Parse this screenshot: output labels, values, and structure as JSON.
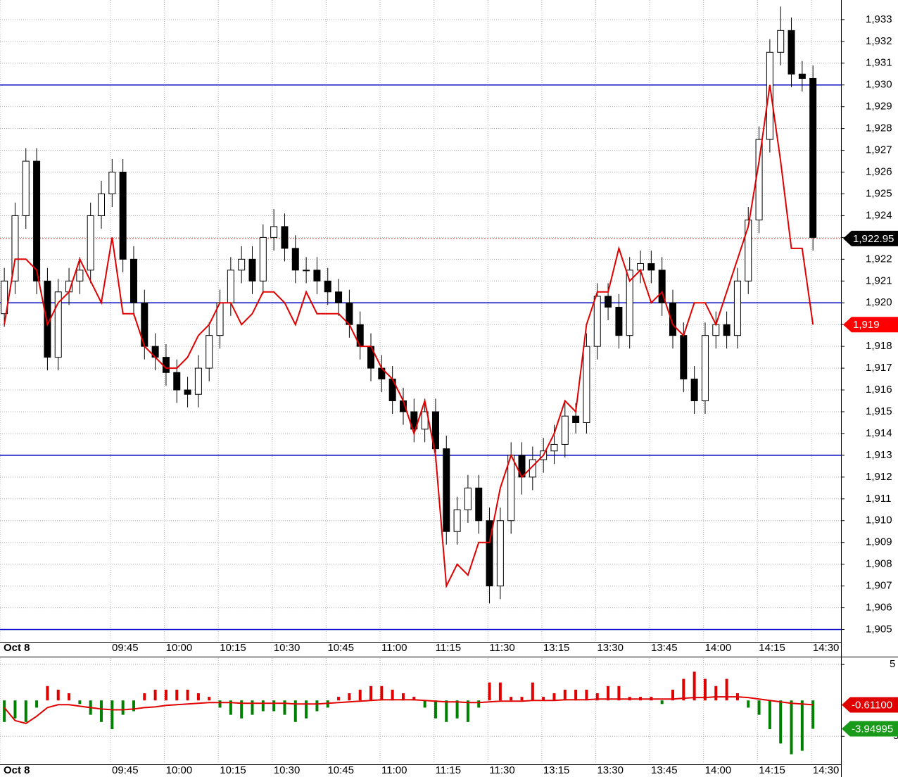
{
  "chart_data": [
    {
      "type": "candlestick",
      "xlim": [
        0,
        78
      ],
      "xticks": [
        {
          "value": 0,
          "label": "Oct 8"
        },
        {
          "value": 10.25,
          "label": "09:45"
        },
        {
          "value": 15.25,
          "label": "10:00"
        },
        {
          "value": 20.25,
          "label": "10:15"
        },
        {
          "value": 25.25,
          "label": "10:30"
        },
        {
          "value": 30.25,
          "label": "10:45"
        },
        {
          "value": 35.25,
          "label": "11:00"
        },
        {
          "value": 40.25,
          "label": "11:15"
        },
        {
          "value": 45.25,
          "label": "11:30"
        },
        {
          "value": 50.25,
          "label": "13:15"
        },
        {
          "value": 55.25,
          "label": "13:30"
        },
        {
          "value": 60.25,
          "label": "13:45"
        },
        {
          "value": 65.25,
          "label": "14:00"
        },
        {
          "value": 70.25,
          "label": "14:15"
        },
        {
          "value": 75.25,
          "label": "14:30"
        }
      ],
      "ylim": [
        1904.5,
        1933.9
      ],
      "yticks": [
        {
          "value": 1905,
          "label": "1,905"
        },
        {
          "value": 1906,
          "label": "1,906"
        },
        {
          "value": 1907,
          "label": "1,907"
        },
        {
          "value": 1908,
          "label": "1,908"
        },
        {
          "value": 1909,
          "label": "1,909"
        },
        {
          "value": 1910,
          "label": "1,910"
        },
        {
          "value": 1911,
          "label": "1,911"
        },
        {
          "value": 1912,
          "label": "1,912"
        },
        {
          "value": 1913,
          "label": "1,913"
        },
        {
          "value": 1914,
          "label": "1,914"
        },
        {
          "value": 1915,
          "label": "1,915"
        },
        {
          "value": 1916,
          "label": "1,916"
        },
        {
          "value": 1917,
          "label": "1,917"
        },
        {
          "value": 1918,
          "label": "1,918"
        },
        {
          "value": 1919,
          "label": "1,919"
        },
        {
          "value": 1920,
          "label": "1,920"
        },
        {
          "value": 1921,
          "label": "1,921"
        },
        {
          "value": 1922,
          "label": "1,922"
        },
        {
          "value": 1923,
          "label": "1,923"
        },
        {
          "value": 1924,
          "label": "1,924"
        },
        {
          "value": 1925,
          "label": "1,925"
        },
        {
          "value": 1926,
          "label": "1,926"
        },
        {
          "value": 1927,
          "label": "1,927"
        },
        {
          "value": 1928,
          "label": "1,928"
        },
        {
          "value": 1929,
          "label": "1,929"
        },
        {
          "value": 1930,
          "label": "1,930"
        },
        {
          "value": 1931,
          "label": "1,931"
        },
        {
          "value": 1932,
          "label": "1,932"
        },
        {
          "value": 1933,
          "label": "1,933"
        }
      ],
      "grid": true,
      "open": [
        1919.5,
        1921,
        1924,
        1926.5,
        1921,
        1917.5,
        1920.5,
        1921,
        1921.5,
        1924,
        1925,
        1926,
        1922,
        1920,
        1918,
        1917.5,
        1916.8,
        1916,
        1915.8,
        1917,
        1918.5,
        1920,
        1921.5,
        1922,
        1921,
        1923,
        1923.5,
        1922.5,
        1921.5,
        1921.5,
        1921,
        1920.5,
        1920,
        1919,
        1918,
        1917,
        1916.5,
        1915.5,
        1915,
        1914.2,
        1915,
        1913.3,
        1909.5,
        1910.5,
        1911.5,
        1910,
        1907,
        1910,
        1913,
        1912,
        1912.8,
        1913.2,
        1913.5,
        1914.8,
        1914.5,
        1918,
        1920.3,
        1919.8,
        1918.5,
        1921.5,
        1921.8,
        1921.5,
        1920,
        1918.5,
        1916.5,
        1915.5,
        1918.5,
        1919,
        1918.5,
        1921,
        1923.8,
        1927.5,
        1931.5,
        1932.5,
        1930.5,
        1930.3
      ],
      "high": [
        1921.6,
        1924.6,
        1927.1,
        1927.1,
        1921.6,
        1921.1,
        1921.6,
        1922.1,
        1924.6,
        1925.6,
        1926.6,
        1926.6,
        1922.6,
        1920.6,
        1918.6,
        1918.1,
        1917.4,
        1916.6,
        1917.6,
        1919.1,
        1920.6,
        1922.1,
        1922.6,
        1922.6,
        1923.6,
        1924.3,
        1924.1,
        1923.1,
        1922.1,
        1922.1,
        1921.6,
        1921.1,
        1920.6,
        1919.6,
        1918.6,
        1917.6,
        1917.1,
        1916.1,
        1915.6,
        1915.6,
        1915.6,
        1913.9,
        1911.1,
        1912.1,
        1912.1,
        1910.6,
        1910.6,
        1913.6,
        1913.6,
        1913.4,
        1913.8,
        1914.4,
        1915.4,
        1915.4,
        1918.6,
        1920.9,
        1920.9,
        1920.4,
        1922.1,
        1922.4,
        1922.4,
        1922.1,
        1920.6,
        1919.1,
        1917.1,
        1919.1,
        1919.6,
        1919.6,
        1921.6,
        1924.4,
        1928.1,
        1932.1,
        1933.6,
        1933.1,
        1931.1,
        1930.9
      ],
      "low": [
        1918.9,
        1920.4,
        1923.4,
        1920.4,
        1916.9,
        1916.9,
        1919.9,
        1920.4,
        1920.9,
        1923.4,
        1924.4,
        1921.4,
        1919.4,
        1917.4,
        1916.9,
        1916.2,
        1915.4,
        1915.2,
        1915.2,
        1916.4,
        1917.9,
        1919.4,
        1920.9,
        1920.4,
        1920.4,
        1922.4,
        1921.9,
        1920.9,
        1920.9,
        1920.4,
        1919.9,
        1919.4,
        1918.4,
        1917.4,
        1916.4,
        1915.9,
        1914.9,
        1914.4,
        1913.6,
        1913.6,
        1912.7,
        1908.9,
        1908.9,
        1909.9,
        1909.4,
        1906.2,
        1906.4,
        1909.4,
        1911.2,
        1911.4,
        1912.2,
        1912.6,
        1912.9,
        1914.0,
        1914.0,
        1917.4,
        1919.2,
        1917.9,
        1917.9,
        1920.9,
        1920.9,
        1919.4,
        1917.9,
        1915.9,
        1914.9,
        1914.9,
        1917.9,
        1917.9,
        1917.9,
        1920.4,
        1923.2,
        1926.9,
        1930.9,
        1929.9,
        1929.7,
        1922.4
      ],
      "close": [
        1921,
        1924,
        1926.5,
        1921,
        1917.5,
        1920.5,
        1921,
        1921.5,
        1924,
        1925,
        1926,
        1922,
        1920,
        1918,
        1917.5,
        1916.8,
        1916,
        1915.8,
        1917,
        1918.5,
        1920,
        1921.5,
        1922,
        1921,
        1923,
        1923.5,
        1922.5,
        1921.5,
        1921.5,
        1921,
        1920.5,
        1920,
        1919,
        1918,
        1917,
        1916.5,
        1915.5,
        1915,
        1914.2,
        1915,
        1913.3,
        1909.5,
        1910.5,
        1911.5,
        1910,
        1907,
        1910,
        1913,
        1912,
        1912.8,
        1913.2,
        1913.5,
        1914.8,
        1914.5,
        1918,
        1920.3,
        1919.8,
        1918.5,
        1921.5,
        1921.8,
        1921.5,
        1920,
        1918.5,
        1916.5,
        1915.5,
        1918.5,
        1919,
        1918.5,
        1921,
        1923.8,
        1927.5,
        1931.5,
        1932.5,
        1930.5,
        1930.3,
        1923
      ],
      "overlay": {
        "color": "#e00000",
        "values": [
          1919,
          1922,
          1922,
          1921.5,
          1919,
          1920,
          1920.5,
          1922,
          1921,
          1920,
          1923,
          1919.5,
          1919.5,
          1918,
          1917.5,
          1917,
          1917,
          1917.5,
          1918.5,
          1919,
          1920,
          1920,
          1919,
          1919.5,
          1920.5,
          1920.5,
          1920,
          1919,
          1920.5,
          1919.5,
          1919.5,
          1919.5,
          1919,
          1918,
          1918,
          1917,
          1916.5,
          1915.5,
          1914,
          1915.5,
          1913,
          1907,
          1908,
          1907.5,
          1909,
          1909,
          1911.5,
          1913,
          1912,
          1912.5,
          1913,
          1914,
          1915.5,
          1915,
          1919,
          1920.5,
          1920.5,
          1922.5,
          1921,
          1921.5,
          1920,
          1920.5,
          1919,
          1918.5,
          1920,
          1920,
          1919,
          1920.5,
          1922,
          1923.5,
          1926.5,
          1930,
          1926.5,
          1922.5,
          1922.5,
          1919
        ]
      },
      "reference_lines": {
        "color": "#0000c0",
        "values": [
          1930,
          1920,
          1913,
          1905
        ]
      },
      "price_tags": [
        {
          "value": 1922.95,
          "label": "1,922.95",
          "color": "#000000"
        },
        {
          "value": 1919,
          "label": "1,919",
          "color": "#ff0000"
        }
      ]
    },
    {
      "type": "histogram",
      "xlim": [
        0,
        78
      ],
      "xticks": [
        {
          "value": 0,
          "label": "Oct 8"
        },
        {
          "value": 10.25,
          "label": "09:45"
        },
        {
          "value": 15.25,
          "label": "10:00"
        },
        {
          "value": 20.25,
          "label": "10:15"
        },
        {
          "value": 25.25,
          "label": "10:30"
        },
        {
          "value": 30.25,
          "label": "10:45"
        },
        {
          "value": 35.25,
          "label": "11:00"
        },
        {
          "value": 40.25,
          "label": "11:15"
        },
        {
          "value": 45.25,
          "label": "11:30"
        },
        {
          "value": 50.25,
          "label": "13:15"
        },
        {
          "value": 55.25,
          "label": "13:30"
        },
        {
          "value": 60.25,
          "label": "13:45"
        },
        {
          "value": 65.25,
          "label": "14:00"
        },
        {
          "value": 70.25,
          "label": "14:15"
        },
        {
          "value": 75.25,
          "label": "14:30"
        }
      ],
      "ylim": [
        -8.8,
        5.9
      ],
      "yticks": [
        5,
        -5
      ],
      "grid": true,
      "color_up": "#e00000",
      "color_down": "#008000",
      "values": [
        -3,
        -2.5,
        -3,
        -1,
        2,
        1.5,
        1,
        -0.5,
        -2,
        -3,
        -4,
        -2,
        -1.5,
        1,
        1.5,
        1.5,
        1.5,
        1.5,
        1,
        0.5,
        -1,
        -2,
        -2.5,
        -2,
        -1.5,
        -1.5,
        -2,
        -3,
        -2.5,
        -1.5,
        -1,
        0.5,
        1,
        1.5,
        2,
        2,
        1.5,
        1,
        0.5,
        -1,
        -2.5,
        -3,
        -2.5,
        -3,
        -1,
        2.5,
        2.5,
        0.5,
        0.5,
        2.5,
        0.5,
        1,
        1.5,
        1.5,
        1.5,
        1,
        2,
        2,
        0.5,
        0.5,
        0.5,
        -0.5,
        1.5,
        3,
        4,
        3,
        2,
        3,
        1,
        -1,
        -2,
        -4,
        -6,
        -7.5,
        -7,
        -3.94995
      ],
      "signal": {
        "color": "#e00000",
        "values": [
          -1,
          -2.8,
          -3.2,
          -2.2,
          -1,
          -0.6,
          -0.6,
          -0.8,
          -1,
          -1.2,
          -1.3,
          -1.3,
          -1.2,
          -1,
          -0.9,
          -0.7,
          -0.6,
          -0.5,
          -0.4,
          -0.3,
          -0.3,
          -0.3,
          -0.4,
          -0.4,
          -0.4,
          -0.4,
          -0.4,
          -0.5,
          -0.5,
          -0.5,
          -0.4,
          -0.3,
          -0.2,
          -0.1,
          0,
          0.1,
          0.1,
          0.1,
          0.1,
          0,
          -0.1,
          -0.2,
          -0.2,
          -0.3,
          -0.3,
          -0.2,
          -0.1,
          -0.1,
          -0.1,
          0,
          0,
          0,
          0.1,
          0.1,
          0.1,
          0.2,
          0.2,
          0.2,
          0.2,
          0.2,
          0.2,
          0.2,
          0.2,
          0.3,
          0.4,
          0.4,
          0.5,
          0.5,
          0.5,
          0.4,
          0.2,
          0,
          -0.2,
          -0.4,
          -0.5,
          -0.611
        ]
      },
      "price_tags": [
        {
          "value": -0.611,
          "label": "-0.61100",
          "color": "#e00000"
        },
        {
          "value": -3.94995,
          "label": "-3.94995",
          "color": "#1a9a1a"
        }
      ]
    }
  ]
}
